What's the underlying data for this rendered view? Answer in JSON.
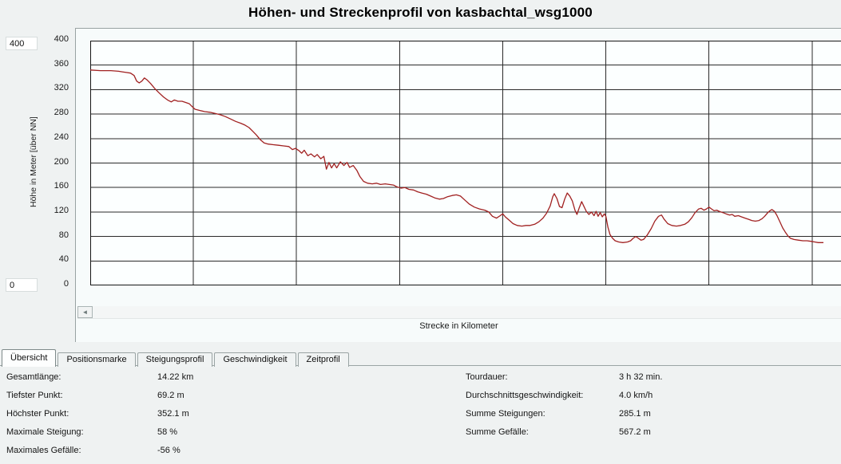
{
  "title": "Höhen- und Streckenprofil von kasbachtal_wsg1000",
  "inputs": {
    "y_max": "400",
    "y_min": "0"
  },
  "icons": {
    "scroll_left_arrow": "◄"
  },
  "tabs": [
    {
      "label": "Übersicht",
      "active": true
    },
    {
      "label": "Positionsmarke",
      "active": false
    },
    {
      "label": "Steigungsprofil",
      "active": false
    },
    {
      "label": "Geschwindigkeit",
      "active": false
    },
    {
      "label": "Zeitprofil",
      "active": false
    }
  ],
  "stats": {
    "left": [
      {
        "label": "Gesamtlänge:",
        "value": "14.22 km"
      },
      {
        "label": "Tiefster Punkt:",
        "value": "69.2 m"
      },
      {
        "label": "Höchster Punkt:",
        "value": "352.1 m"
      },
      {
        "label": "Maximale Steigung:",
        "value": "58 %"
      },
      {
        "label": "Maximales Gefälle:",
        "value": "-56 %"
      }
    ],
    "right": [
      {
        "label": "Tourdauer:",
        "value": "3 h 32 min."
      },
      {
        "label": "Durchschnittsgeschwindigkeit:",
        "value": "4.0 km/h"
      },
      {
        "label": "Summe Steigungen:",
        "value": "285.1 m"
      },
      {
        "label": "Summe Gefälle:",
        "value": "567.2 m"
      }
    ]
  },
  "chart_data": {
    "type": "line",
    "title": "Höhen- und Streckenprofil von kasbachtal_wsg1000",
    "xlabel": "Strecke in Kilometer",
    "ylabel": "Höhe in Meter [über NN]",
    "xlim": [
      0,
      14.57
    ],
    "ylim": [
      0,
      400
    ],
    "x_ticks": [
      0,
      2,
      4,
      6,
      8,
      10,
      12,
      14
    ],
    "y_ticks": [
      400,
      360,
      320,
      280,
      240,
      200,
      160,
      120,
      80,
      40,
      0
    ],
    "grid": true,
    "legend": "none",
    "line_color": "#a12121",
    "grid_color": "#2a2a2a",
    "plot_bg": "#fcffff",
    "border_color": "#161616",
    "points": [
      [
        0.0,
        352
      ],
      [
        0.2,
        351
      ],
      [
        0.4,
        351
      ],
      [
        0.55,
        350
      ],
      [
        0.62,
        349
      ],
      [
        0.7,
        348
      ],
      [
        0.78,
        347
      ],
      [
        0.85,
        343
      ],
      [
        0.9,
        334
      ],
      [
        0.95,
        331
      ],
      [
        1.0,
        334
      ],
      [
        1.05,
        339
      ],
      [
        1.1,
        336
      ],
      [
        1.17,
        330
      ],
      [
        1.25,
        322
      ],
      [
        1.33,
        315
      ],
      [
        1.42,
        308
      ],
      [
        1.5,
        303
      ],
      [
        1.57,
        300
      ],
      [
        1.63,
        303
      ],
      [
        1.7,
        301
      ],
      [
        1.78,
        301
      ],
      [
        1.85,
        299
      ],
      [
        1.92,
        297
      ],
      [
        1.98,
        292
      ],
      [
        2.03,
        288
      ],
      [
        2.12,
        286
      ],
      [
        2.22,
        284
      ],
      [
        2.32,
        283
      ],
      [
        2.42,
        281
      ],
      [
        2.52,
        279
      ],
      [
        2.62,
        276
      ],
      [
        2.72,
        272
      ],
      [
        2.82,
        268
      ],
      [
        2.92,
        265
      ],
      [
        3.0,
        262
      ],
      [
        3.08,
        258
      ],
      [
        3.15,
        252
      ],
      [
        3.22,
        246
      ],
      [
        3.3,
        238
      ],
      [
        3.37,
        233
      ],
      [
        3.45,
        231
      ],
      [
        3.55,
        230
      ],
      [
        3.65,
        229
      ],
      [
        3.75,
        228
      ],
      [
        3.85,
        227
      ],
      [
        3.92,
        222
      ],
      [
        3.98,
        224
      ],
      [
        4.05,
        220
      ],
      [
        4.1,
        216
      ],
      [
        4.15,
        221
      ],
      [
        4.22,
        212
      ],
      [
        4.28,
        215
      ],
      [
        4.35,
        210
      ],
      [
        4.4,
        214
      ],
      [
        4.47,
        207
      ],
      [
        4.53,
        211
      ],
      [
        4.58,
        190
      ],
      [
        4.63,
        201
      ],
      [
        4.68,
        192
      ],
      [
        4.73,
        199
      ],
      [
        4.78,
        192
      ],
      [
        4.85,
        202
      ],
      [
        4.92,
        196
      ],
      [
        4.98,
        201
      ],
      [
        5.03,
        193
      ],
      [
        5.1,
        196
      ],
      [
        5.17,
        188
      ],
      [
        5.23,
        178
      ],
      [
        5.3,
        170
      ],
      [
        5.38,
        167
      ],
      [
        5.47,
        166
      ],
      [
        5.55,
        167
      ],
      [
        5.63,
        165
      ],
      [
        5.72,
        166
      ],
      [
        5.8,
        165
      ],
      [
        5.88,
        164
      ],
      [
        5.95,
        161
      ],
      [
        6.03,
        159
      ],
      [
        6.1,
        160
      ],
      [
        6.18,
        157
      ],
      [
        6.27,
        156
      ],
      [
        6.35,
        153
      ],
      [
        6.43,
        151
      ],
      [
        6.52,
        149
      ],
      [
        6.6,
        146
      ],
      [
        6.68,
        143
      ],
      [
        6.77,
        141
      ],
      [
        6.85,
        142
      ],
      [
        6.93,
        145
      ],
      [
        7.02,
        147
      ],
      [
        7.1,
        148
      ],
      [
        7.18,
        146
      ],
      [
        7.27,
        139
      ],
      [
        7.35,
        133
      ],
      [
        7.45,
        128
      ],
      [
        7.55,
        125
      ],
      [
        7.65,
        123
      ],
      [
        7.73,
        120
      ],
      [
        7.8,
        113
      ],
      [
        7.88,
        110
      ],
      [
        7.95,
        114
      ],
      [
        8.0,
        117
      ],
      [
        8.05,
        112
      ],
      [
        8.12,
        107
      ],
      [
        8.2,
        101
      ],
      [
        8.28,
        98
      ],
      [
        8.37,
        97
      ],
      [
        8.45,
        98
      ],
      [
        8.53,
        98
      ],
      [
        8.62,
        100
      ],
      [
        8.7,
        104
      ],
      [
        8.78,
        110
      ],
      [
        8.85,
        118
      ],
      [
        8.92,
        130
      ],
      [
        8.97,
        145
      ],
      [
        9.0,
        150
      ],
      [
        9.05,
        142
      ],
      [
        9.1,
        129
      ],
      [
        9.15,
        127
      ],
      [
        9.2,
        141
      ],
      [
        9.25,
        151
      ],
      [
        9.3,
        146
      ],
      [
        9.35,
        138
      ],
      [
        9.4,
        123
      ],
      [
        9.44,
        116
      ],
      [
        9.48,
        126
      ],
      [
        9.53,
        137
      ],
      [
        9.57,
        130
      ],
      [
        9.62,
        121
      ],
      [
        9.67,
        116
      ],
      [
        9.72,
        120
      ],
      [
        9.77,
        114
      ],
      [
        9.81,
        121
      ],
      [
        9.85,
        113
      ],
      [
        9.89,
        119
      ],
      [
        9.93,
        112
      ],
      [
        9.97,
        117
      ],
      [
        10.0,
        113
      ],
      [
        10.04,
        95
      ],
      [
        10.08,
        83
      ],
      [
        10.13,
        77
      ],
      [
        10.18,
        73
      ],
      [
        10.25,
        71
      ],
      [
        10.33,
        70
      ],
      [
        10.42,
        71
      ],
      [
        10.48,
        73
      ],
      [
        10.53,
        77
      ],
      [
        10.58,
        80
      ],
      [
        10.63,
        77
      ],
      [
        10.68,
        74
      ],
      [
        10.73,
        75
      ],
      [
        10.8,
        82
      ],
      [
        10.88,
        93
      ],
      [
        10.95,
        105
      ],
      [
        11.02,
        113
      ],
      [
        11.08,
        115
      ],
      [
        11.13,
        108
      ],
      [
        11.2,
        101
      ],
      [
        11.28,
        98
      ],
      [
        11.37,
        97
      ],
      [
        11.45,
        98
      ],
      [
        11.53,
        100
      ],
      [
        11.6,
        104
      ],
      [
        11.67,
        111
      ],
      [
        11.73,
        119
      ],
      [
        11.8,
        125
      ],
      [
        11.85,
        126
      ],
      [
        11.9,
        123
      ],
      [
        11.95,
        125
      ],
      [
        12.0,
        128
      ],
      [
        12.05,
        125
      ],
      [
        12.1,
        122
      ],
      [
        12.15,
        123
      ],
      [
        12.2,
        121
      ],
      [
        12.27,
        119
      ],
      [
        12.33,
        117
      ],
      [
        12.4,
        115
      ],
      [
        12.45,
        116
      ],
      [
        12.5,
        113
      ],
      [
        12.57,
        114
      ],
      [
        12.63,
        112
      ],
      [
        12.7,
        110
      ],
      [
        12.77,
        108
      ],
      [
        12.83,
        106
      ],
      [
        12.9,
        105
      ],
      [
        12.97,
        106
      ],
      [
        13.03,
        109
      ],
      [
        13.08,
        113
      ],
      [
        13.13,
        118
      ],
      [
        13.18,
        122
      ],
      [
        13.22,
        124
      ],
      [
        13.27,
        121
      ],
      [
        13.32,
        114
      ],
      [
        13.38,
        103
      ],
      [
        13.43,
        94
      ],
      [
        13.48,
        87
      ],
      [
        13.53,
        81
      ],
      [
        13.58,
        77
      ],
      [
        13.65,
        75
      ],
      [
        13.73,
        74
      ],
      [
        13.82,
        73
      ],
      [
        13.9,
        73
      ],
      [
        13.98,
        72
      ],
      [
        14.05,
        71
      ],
      [
        14.12,
        70
      ],
      [
        14.18,
        70
      ],
      [
        14.22,
        70
      ]
    ]
  }
}
